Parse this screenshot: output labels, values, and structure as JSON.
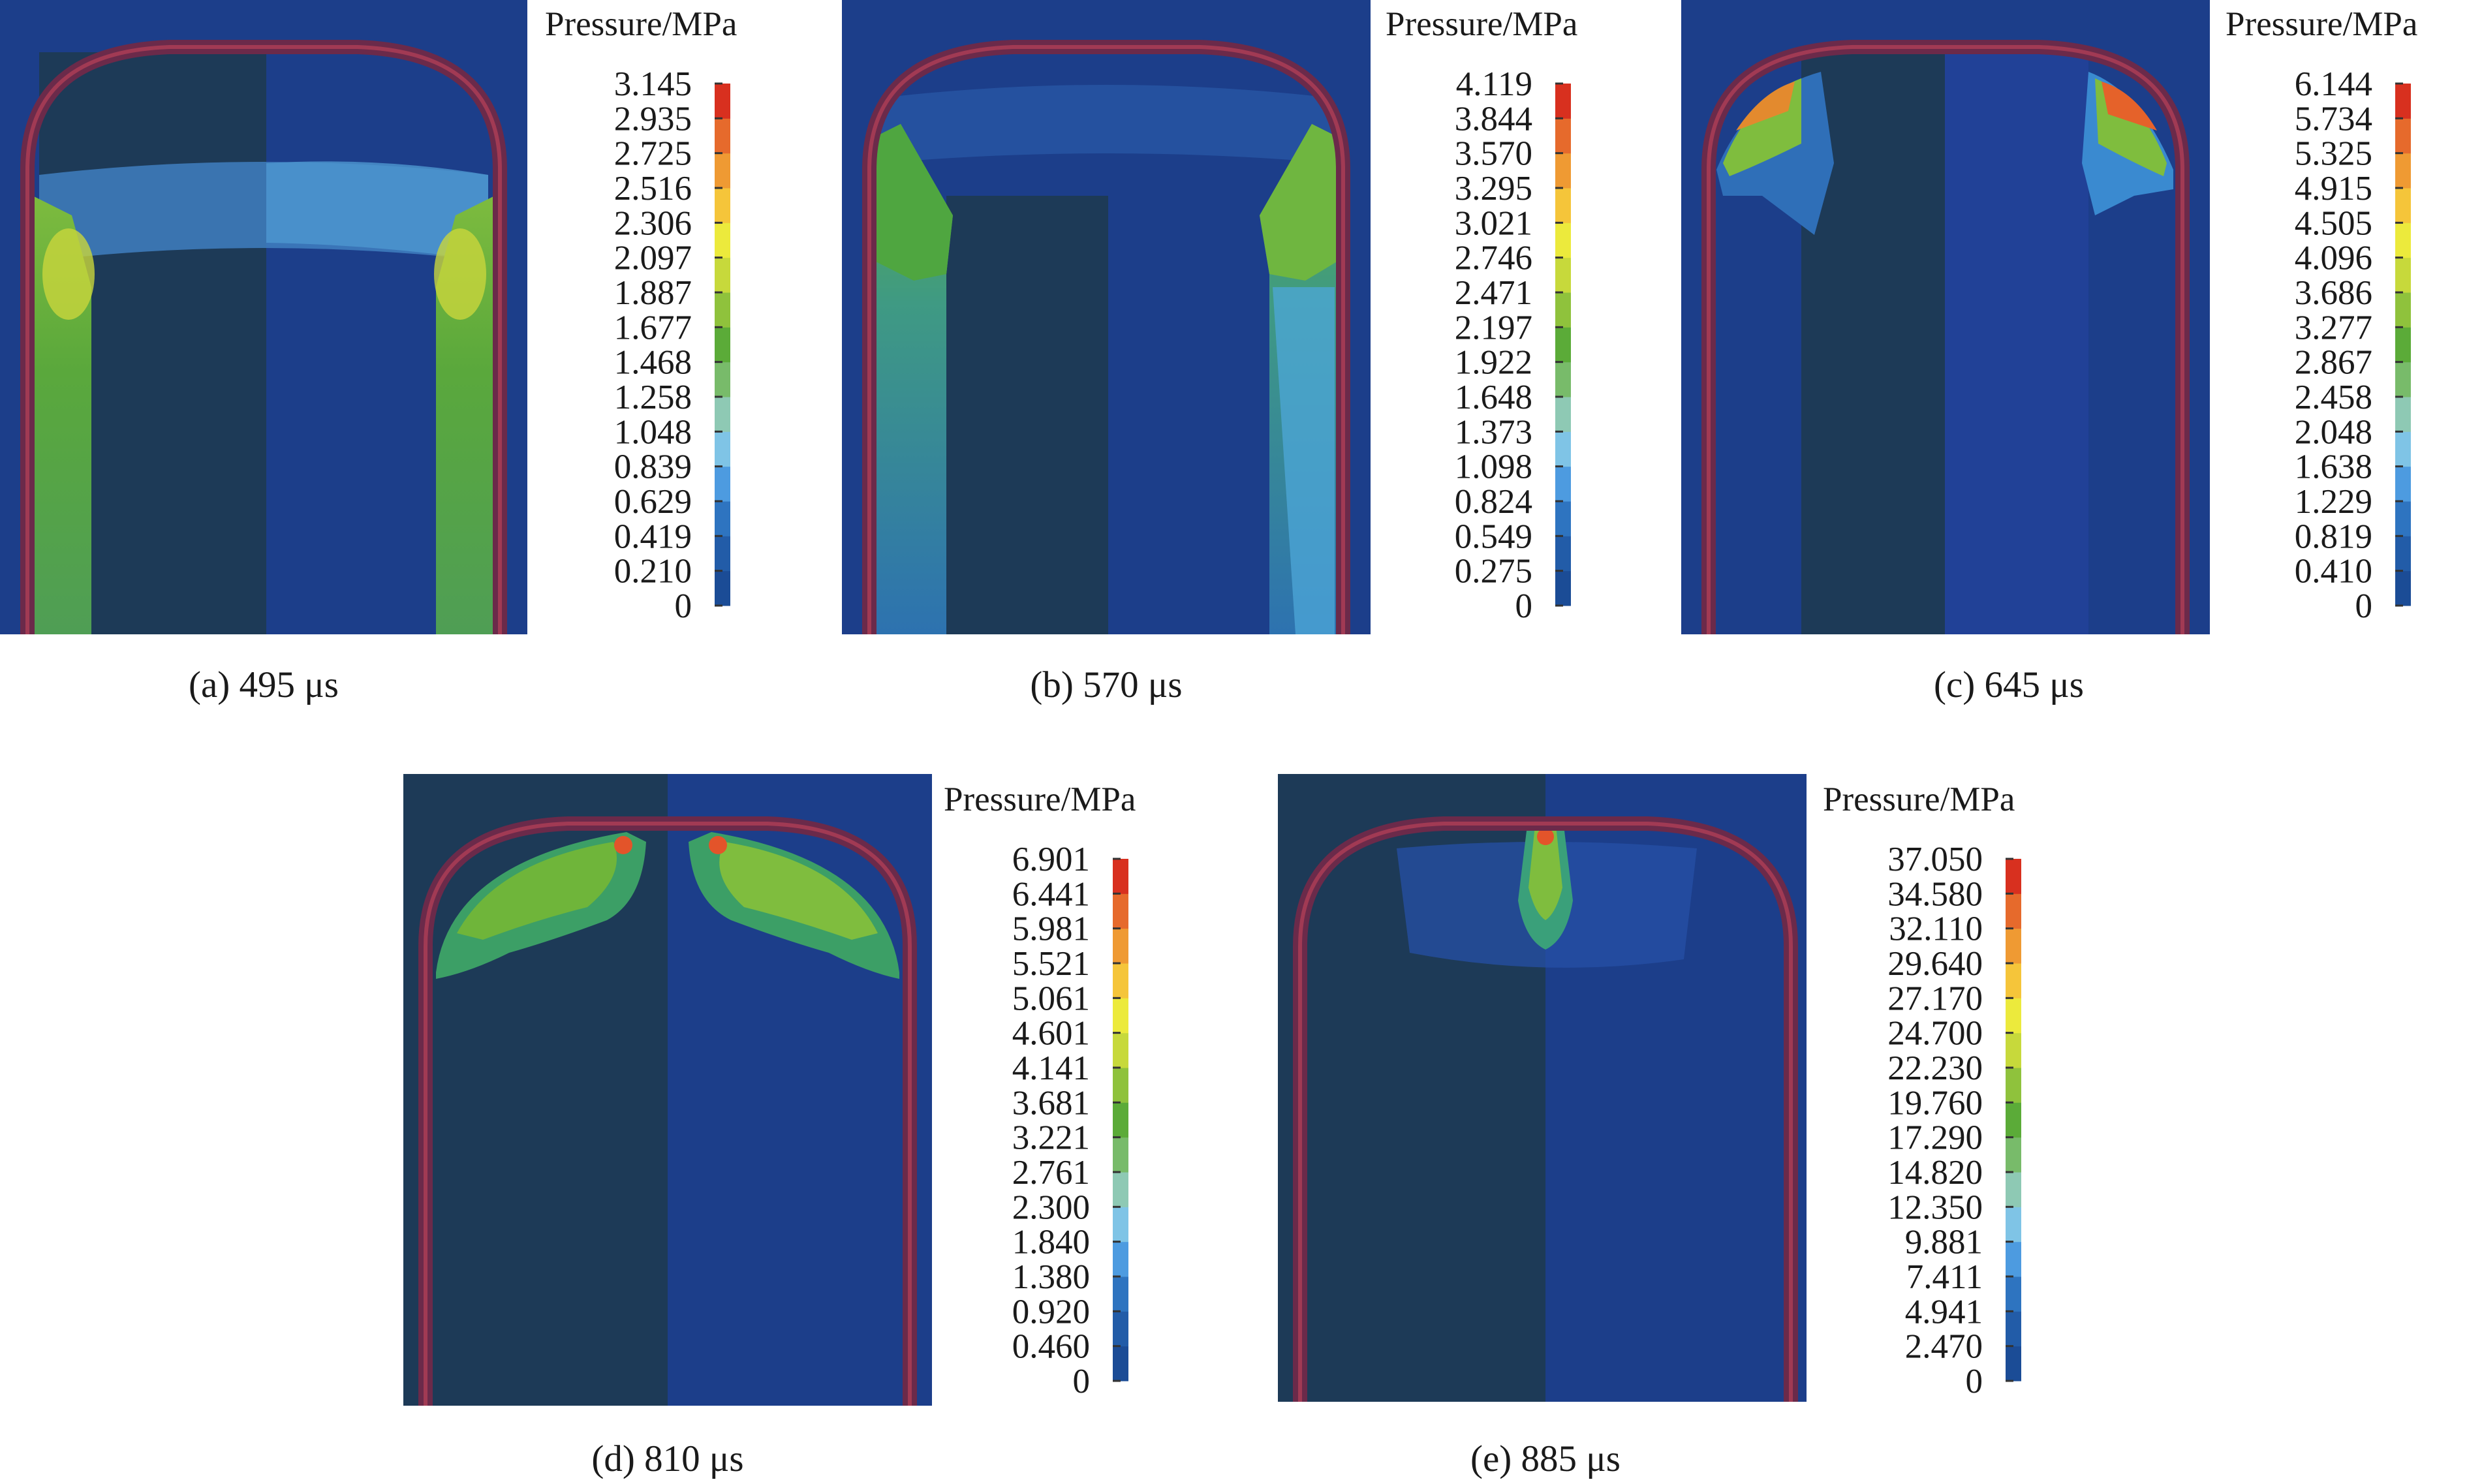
{
  "legend_title": "Pressure/MPa",
  "colors": {
    "background": "#1c3e8a",
    "cylinder_left_half": "#1d3a57",
    "shell_wall": "#6b2a4a",
    "colorbar": [
      "#1b4c96",
      "#225ca8",
      "#2e74c0",
      "#4d9be0",
      "#7fc4e6",
      "#8ec9b4",
      "#78bb6a",
      "#5bab38",
      "#8fc23c",
      "#c7d93b",
      "#ecea3c",
      "#f5c53a",
      "#ef9a33",
      "#e66a2c",
      "#d8301f"
    ]
  },
  "panels": [
    {
      "caption": "(a) 495 μs",
      "ticks": [
        "3.145",
        "2.935",
        "2.725",
        "2.516",
        "2.306",
        "2.097",
        "1.887",
        "1.677",
        "1.468",
        "1.258",
        "1.048",
        "0.839",
        "0.629",
        "0.419",
        "0.210",
        "0"
      ]
    },
    {
      "caption": "(b) 570 μs",
      "ticks": [
        "4.119",
        "3.844",
        "3.570",
        "3.295",
        "3.021",
        "2.746",
        "2.471",
        "2.197",
        "1.922",
        "1.648",
        "1.373",
        "1.098",
        "0.824",
        "0.549",
        "0.275",
        "0"
      ]
    },
    {
      "caption": "(c) 645 μs",
      "ticks": [
        "6.144",
        "5.734",
        "5.325",
        "4.915",
        "4.505",
        "4.096",
        "3.686",
        "3.277",
        "2.867",
        "2.458",
        "2.048",
        "1.638",
        "1.229",
        "0.819",
        "0.410",
        "0"
      ]
    },
    {
      "caption": "(d) 810 μs",
      "ticks": [
        "6.901",
        "6.441",
        "5.981",
        "5.521",
        "5.061",
        "4.601",
        "4.141",
        "3.681",
        "3.221",
        "2.761",
        "2.300",
        "1.840",
        "1.380",
        "0.920",
        "0.460",
        "0"
      ]
    },
    {
      "caption": "(e) 885 μs",
      "ticks": [
        "37.050",
        "34.580",
        "32.110",
        "29.640",
        "27.170",
        "24.700",
        "22.230",
        "19.760",
        "17.290",
        "14.820",
        "12.350",
        "9.881",
        "7.411",
        "4.941",
        "2.470",
        "0"
      ]
    }
  ]
}
